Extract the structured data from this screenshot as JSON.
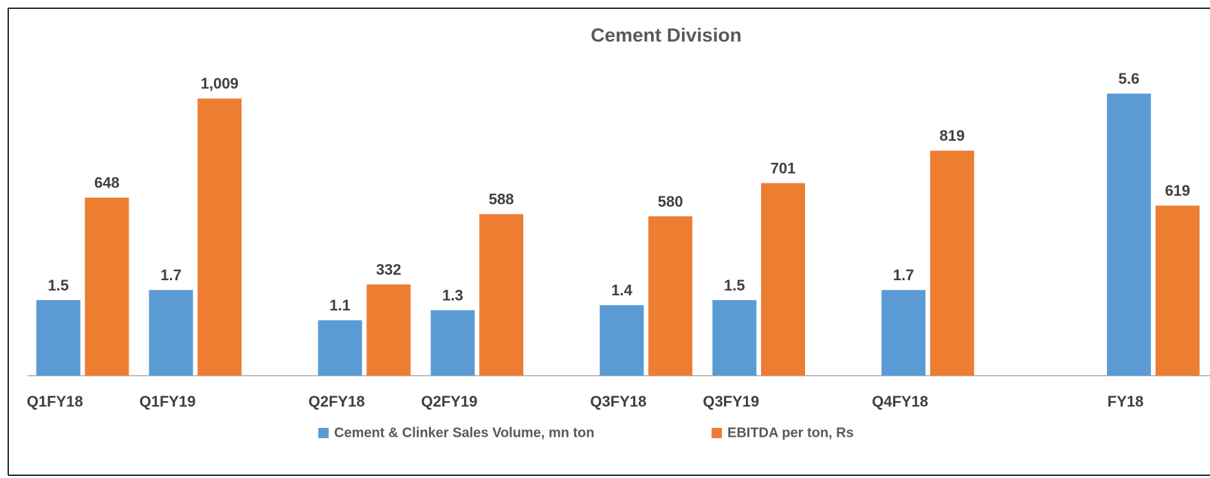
{
  "chart_data": {
    "type": "bar",
    "title": "Cement Division",
    "categories": [
      "Q1FY18",
      "Q1FY19",
      null,
      "Q2FY18",
      "Q2FY19",
      null,
      "Q3FY18",
      "Q3FY19",
      null,
      "Q4FY18",
      null,
      null,
      "FY18"
    ],
    "series": [
      {
        "name": "Cement & Clinker Sales Volume, mn ton",
        "color": "#5b9bd5",
        "values": [
          1.5,
          1.7,
          null,
          1.1,
          1.3,
          null,
          1.4,
          1.5,
          null,
          1.7,
          null,
          null,
          5.6
        ]
      },
      {
        "name": "EBITDA per ton, Rs",
        "color": "#ed7d31",
        "axis": "y2",
        "values": [
          648,
          1009,
          null,
          332,
          588,
          null,
          580,
          701,
          null,
          819,
          null,
          null,
          619
        ],
        "value_labels": [
          "648",
          "1,009",
          null,
          "332",
          "588",
          null,
          "580",
          "701",
          null,
          "819",
          null,
          null,
          "619"
        ]
      }
    ],
    "ylim": [
      0,
      6
    ],
    "y2lim": [
      0,
      1100
    ],
    "legend": "bottom"
  }
}
